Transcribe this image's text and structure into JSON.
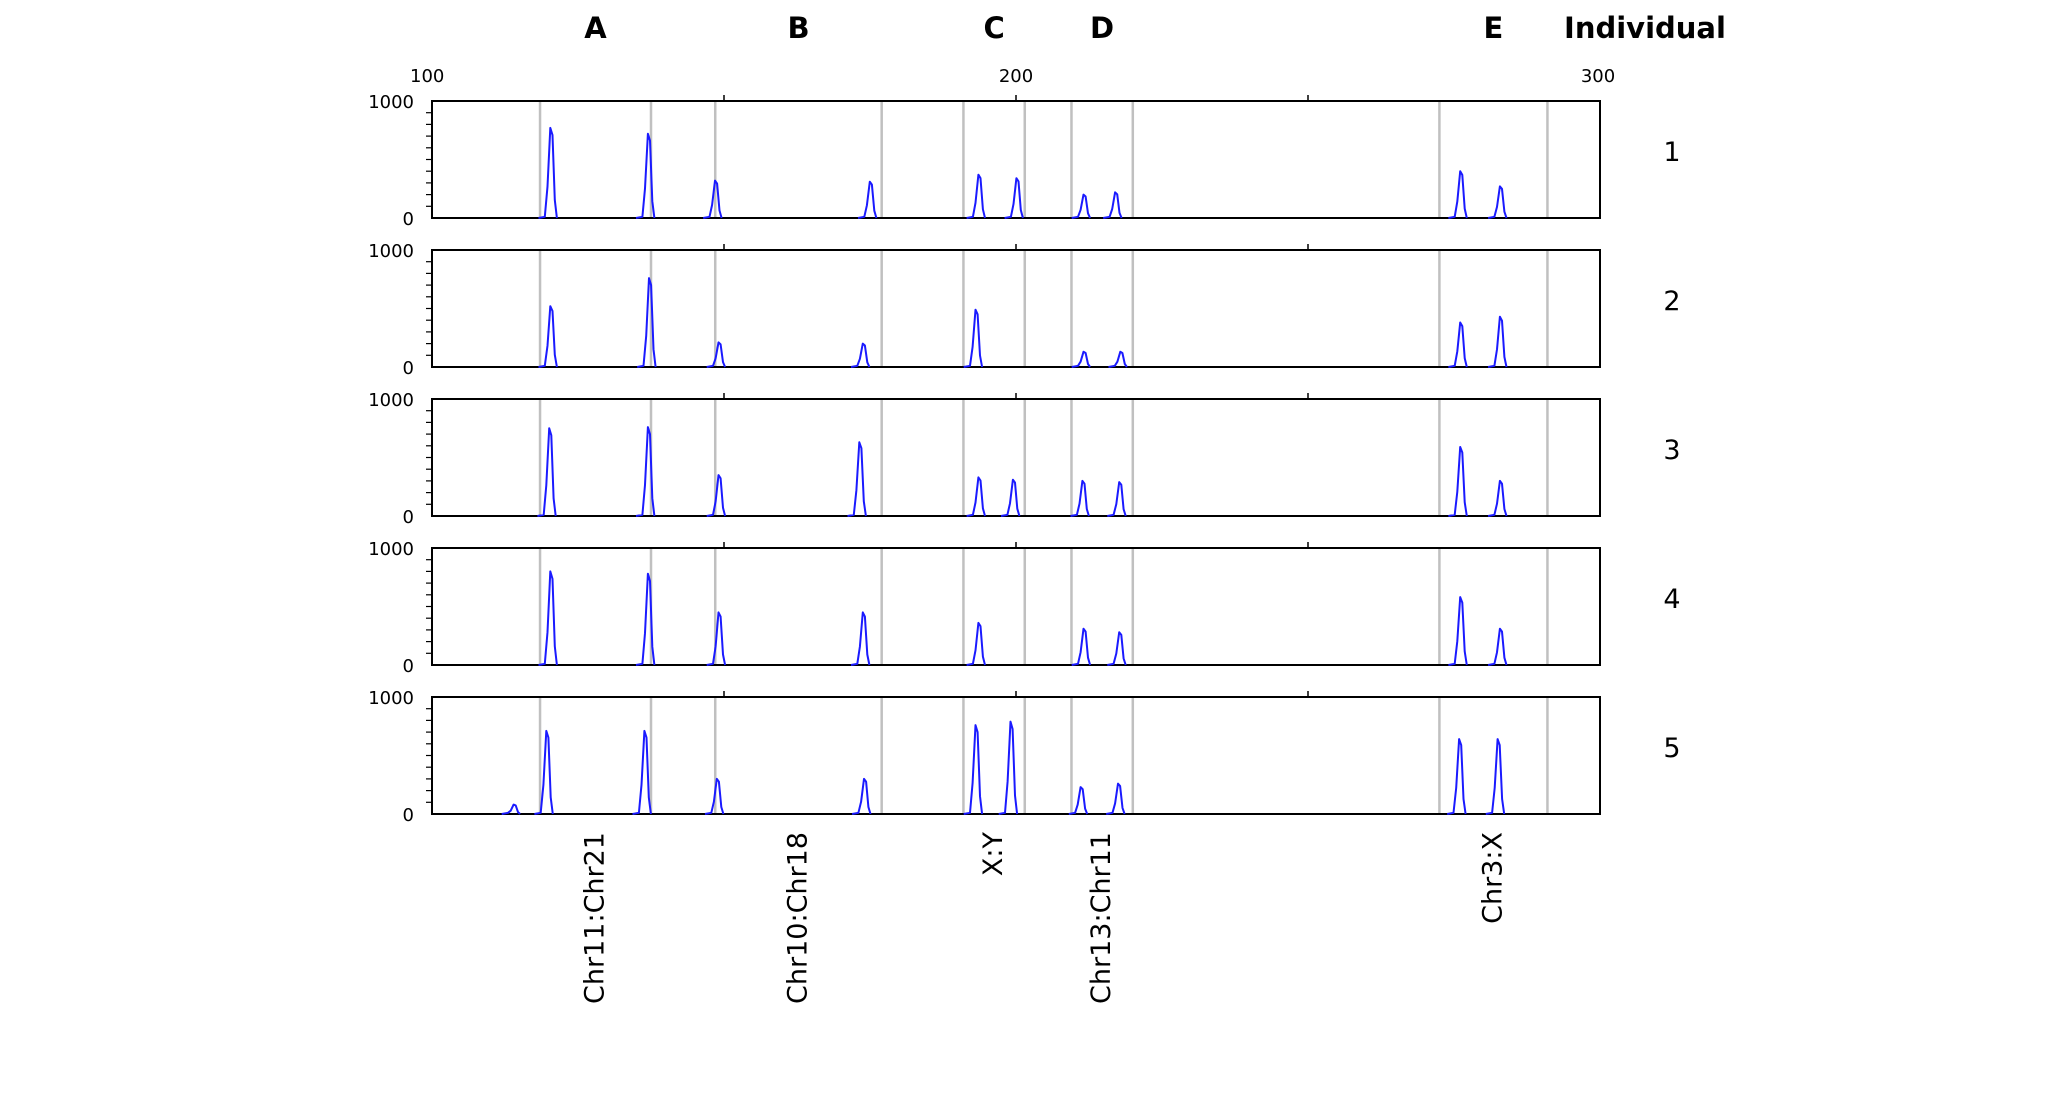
{
  "column_headers": {
    "markers": [
      "A",
      "B",
      "C",
      "D",
      "E"
    ],
    "individual": "Individual"
  },
  "chart_data": {
    "type": "line",
    "x_range": [
      100,
      300
    ],
    "x_ticks": [
      "100",
      "200",
      "300"
    ],
    "y_range": [
      0,
      1000
    ],
    "y_ticks": [
      "0",
      "1000"
    ],
    "grid": false,
    "line_color": "#1a1aff",
    "bin_line_color": "#c0c0c0",
    "bins": [
      {
        "marker": "A",
        "label": "Chr11:Chr21",
        "range": [
          118.5,
          137.5
        ]
      },
      {
        "marker": "B",
        "label": "Chr10:Chr18",
        "range": [
          148.5,
          177
        ]
      },
      {
        "marker": "C",
        "label": "X:Y",
        "range": [
          191,
          201.5
        ]
      },
      {
        "marker": "D",
        "label": "Chr13:Chr11",
        "range": [
          209.5,
          220
        ]
      },
      {
        "marker": "E",
        "label": "Chr3:X",
        "range": [
          272.5,
          291
        ]
      }
    ],
    "panels": [
      {
        "individual": "1",
        "peaks": [
          {
            "x": 120.4,
            "y": 770
          },
          {
            "x": 137.1,
            "y": 720
          },
          {
            "x": 148.6,
            "y": 320
          },
          {
            "x": 175.1,
            "y": 310
          },
          {
            "x": 193.7,
            "y": 370
          },
          {
            "x": 200.2,
            "y": 340
          },
          {
            "x": 211.7,
            "y": 200
          },
          {
            "x": 217.1,
            "y": 220
          },
          {
            "x": 276.2,
            "y": 400
          },
          {
            "x": 283.0,
            "y": 270
          }
        ]
      },
      {
        "individual": "2",
        "peaks": [
          {
            "x": 120.4,
            "y": 520
          },
          {
            "x": 137.3,
            "y": 760
          },
          {
            "x": 149.2,
            "y": 210
          },
          {
            "x": 173.9,
            "y": 200
          },
          {
            "x": 193.2,
            "y": 490
          },
          {
            "x": 211.7,
            "y": 130
          },
          {
            "x": 218.0,
            "y": 130
          },
          {
            "x": 276.2,
            "y": 380
          },
          {
            "x": 283.0,
            "y": 430
          }
        ]
      },
      {
        "individual": "3",
        "peaks": [
          {
            "x": 120.2,
            "y": 750
          },
          {
            "x": 137.1,
            "y": 760
          },
          {
            "x": 149.2,
            "y": 350
          },
          {
            "x": 173.3,
            "y": 630
          },
          {
            "x": 193.7,
            "y": 330
          },
          {
            "x": 199.6,
            "y": 310
          },
          {
            "x": 211.5,
            "y": 300
          },
          {
            "x": 217.8,
            "y": 290
          },
          {
            "x": 276.2,
            "y": 590
          },
          {
            "x": 283.0,
            "y": 300
          }
        ]
      },
      {
        "individual": "4",
        "peaks": [
          {
            "x": 120.4,
            "y": 800
          },
          {
            "x": 137.1,
            "y": 780
          },
          {
            "x": 149.2,
            "y": 450
          },
          {
            "x": 173.9,
            "y": 450
          },
          {
            "x": 193.7,
            "y": 360
          },
          {
            "x": 211.7,
            "y": 310
          },
          {
            "x": 217.8,
            "y": 280
          },
          {
            "x": 276.2,
            "y": 580
          },
          {
            "x": 283.0,
            "y": 310
          }
        ]
      },
      {
        "individual": "5",
        "peaks": [
          {
            "x": 114.1,
            "y": 80
          },
          {
            "x": 119.7,
            "y": 710
          },
          {
            "x": 136.5,
            "y": 710
          },
          {
            "x": 148.9,
            "y": 300
          },
          {
            "x": 174.1,
            "y": 300
          },
          {
            "x": 193.2,
            "y": 760
          },
          {
            "x": 199.2,
            "y": 790
          },
          {
            "x": 211.2,
            "y": 230
          },
          {
            "x": 217.6,
            "y": 260
          },
          {
            "x": 276.0,
            "y": 640
          },
          {
            "x": 282.6,
            "y": 640
          }
        ]
      }
    ]
  }
}
